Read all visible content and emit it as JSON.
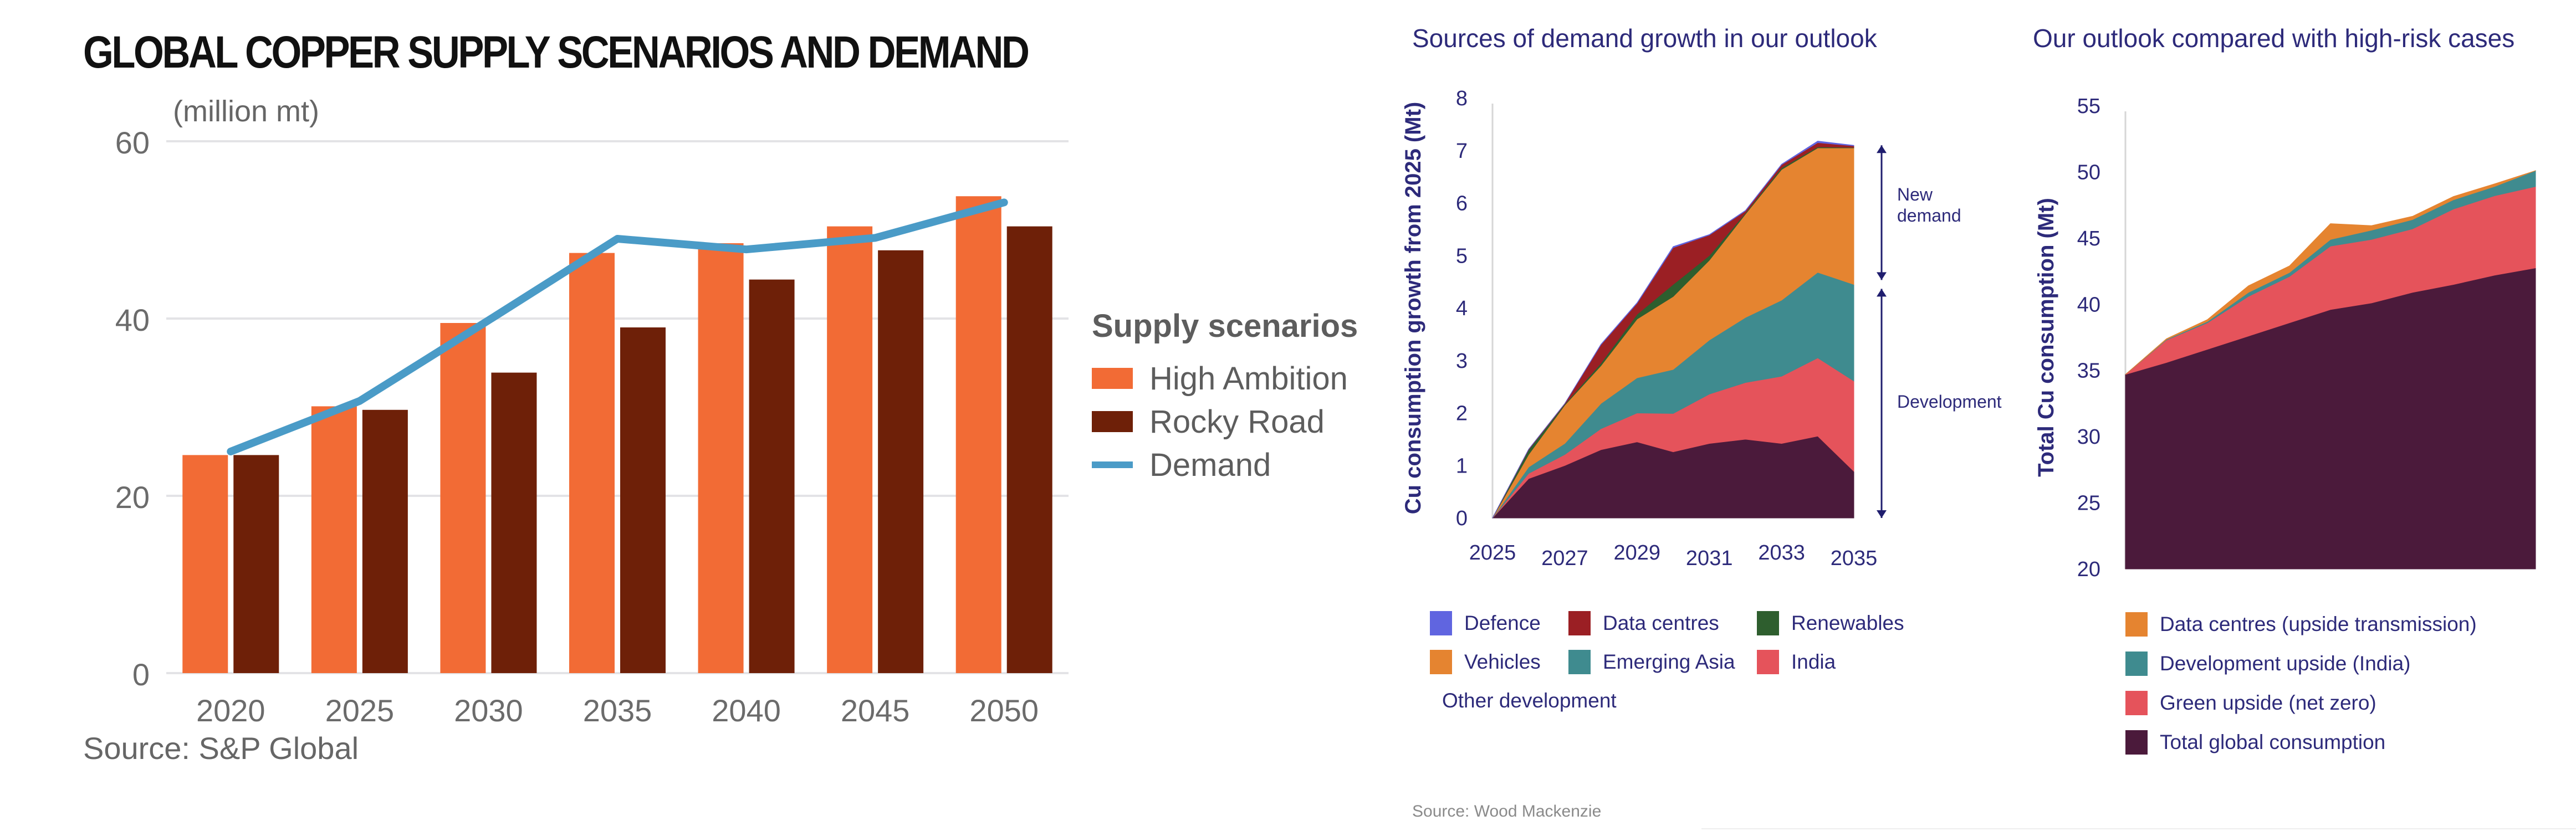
{
  "chart_data": [
    {
      "type": "bar",
      "title": "GLOBAL COPPER SUPPLY SCENARIOS AND DEMAND",
      "ylabel": "(million mt)",
      "xlabel": "",
      "source": "Source: S&P Global",
      "categories": [
        "2020",
        "2025",
        "2030",
        "2035",
        "2040",
        "2045",
        "2050"
      ],
      "yticks": [
        0,
        20,
        40,
        60
      ],
      "ylim": [
        0,
        60
      ],
      "grid": true,
      "legend_title": "Supply scenarios",
      "legend_position": "right",
      "series": [
        {
          "name": "High Ambition",
          "kind": "bar",
          "color": "#f26b35",
          "values": [
            24.6,
            30.1,
            39.5,
            47.4,
            48.5,
            50.4,
            53.8
          ]
        },
        {
          "name": "Rocky Road",
          "kind": "bar",
          "color": "#6e2008",
          "values": [
            24.6,
            29.7,
            33.9,
            39.0,
            44.4,
            47.7,
            50.4
          ]
        },
        {
          "name": "Demand",
          "kind": "line",
          "color": "#4a9bc7",
          "values": [
            25.0,
            30.7,
            39.8,
            49.0,
            47.8,
            49.1,
            53.1
          ]
        }
      ]
    },
    {
      "type": "area",
      "stacked": true,
      "title": "Sources of demand growth in our outlook",
      "ylabel": "Cu consumption growth from 2025 (Mt)",
      "xlabel": "",
      "x": [
        2025,
        2026,
        2027,
        2028,
        2029,
        2030,
        2031,
        2032,
        2033,
        2034,
        2035
      ],
      "xticks": [
        "2025",
        "2027",
        "2029",
        "2031",
        "2033",
        "2035"
      ],
      "yticks": [
        0,
        1,
        2,
        3,
        4,
        5,
        6,
        7,
        8
      ],
      "ylim": [
        0,
        8
      ],
      "grid": false,
      "legend_position": "bottom",
      "annotations": [
        {
          "label": "New demand",
          "from": 4.45,
          "to": 7.1
        },
        {
          "label": "Development",
          "from": 0,
          "to": 4.45
        }
      ],
      "series": [
        {
          "name": "Other development",
          "color": "#4b1a3b",
          "values": [
            0,
            0.75,
            1.0,
            1.3,
            1.45,
            1.26,
            1.42,
            1.5,
            1.42,
            1.56,
            0.89
          ]
        },
        {
          "name": "India",
          "color": "#e5535b",
          "values": [
            0,
            0.1,
            0.21,
            0.4,
            0.55,
            0.73,
            0.94,
            1.08,
            1.28,
            1.49,
            1.72
          ]
        },
        {
          "name": "Emerging Asia",
          "color": "#3f8b8f",
          "values": [
            0,
            0.12,
            0.21,
            0.48,
            0.67,
            0.84,
            1.03,
            1.24,
            1.45,
            1.63,
            1.84
          ]
        },
        {
          "name": "Vehicles",
          "color": "#e58430",
          "values": [
            0,
            0.24,
            0.73,
            0.72,
            1.12,
            1.39,
            1.52,
            1.97,
            2.49,
            2.37,
            2.6
          ]
        },
        {
          "name": "Renewables",
          "color": "#2e5e2e",
          "values": [
            0,
            0.09,
            0.02,
            0.05,
            0.09,
            0.23,
            0.09,
            0.02,
            0.03,
            0.02,
            0.01
          ]
        },
        {
          "name": "Data centres",
          "color": "#9b1f24",
          "values": [
            0,
            0.01,
            0.01,
            0.35,
            0.21,
            0.7,
            0.39,
            0.04,
            0.06,
            0.08,
            0.03
          ]
        },
        {
          "name": "Defence",
          "color": "#6065e0",
          "values": [
            0,
            0.0,
            0.0,
            0.01,
            0.01,
            0.02,
            0.01,
            0.01,
            0.01,
            0.03,
            0.01
          ]
        }
      ],
      "legend_order": [
        "Defence",
        "Data centres",
        "Renewables",
        "Vehicles",
        "Emerging Asia",
        "India",
        "Other development"
      ]
    },
    {
      "type": "area",
      "stacked": true,
      "title": "Our outlook compared with high-risk cases",
      "ylabel": "Total Cu consumption (Mt)",
      "xlabel": "",
      "x": [
        2025,
        2026,
        2027,
        2028,
        2029,
        2030,
        2031,
        2032,
        2033,
        2034,
        2035
      ],
      "xticks": [
        "2025",
        "2027",
        "2029",
        "2031",
        "2033",
        "2035"
      ],
      "yticks": [
        20,
        25,
        30,
        35,
        40,
        45,
        50,
        55
      ],
      "ylim": [
        20,
        55
      ],
      "grid": false,
      "legend_position": "bottom",
      "series": [
        {
          "name": "Total global consumption",
          "color": "#4b1a3b",
          "values": [
            34.7,
            35.6,
            36.6,
            37.6,
            38.6,
            39.6,
            40.1,
            40.9,
            41.5,
            42.2,
            42.75
          ]
        },
        {
          "name": "Green upside (net zero)",
          "color": "#e5535b",
          "values": [
            0,
            1.7,
            2.0,
            3.0,
            3.5,
            4.8,
            4.8,
            4.8,
            5.7,
            6.0,
            6.15
          ]
        },
        {
          "name": "Development upside (India)",
          "color": "#3f8b8f",
          "values": [
            0,
            0.05,
            0.1,
            0.3,
            0.3,
            0.5,
            0.7,
            0.7,
            0.7,
            0.7,
            1.2
          ]
        },
        {
          "name": "Data centres (upside transmission)",
          "color": "#e58430",
          "values": [
            0,
            0.05,
            0.15,
            0.5,
            0.5,
            1.2,
            0.35,
            0.25,
            0.25,
            0.2,
            0.0
          ]
        }
      ],
      "legend_order": [
        "Data centres (upside transmission)",
        "Development upside (India)",
        "Green upside (net zero)",
        "Total global consumption"
      ]
    }
  ],
  "wood_mackenzie_source": "Source: Wood Mackenzie"
}
